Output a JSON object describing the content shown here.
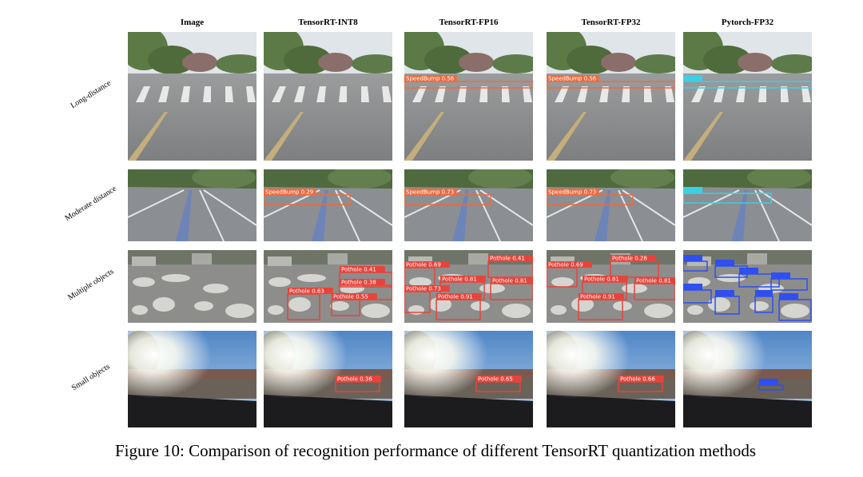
{
  "columns": [
    "Image",
    "TensorRT-INT8",
    "TensorRT-FP16",
    "TensorRT-FP32",
    "Pytorch-FP32"
  ],
  "rows": [
    {
      "label": "Long-distance",
      "detections": [
        [],
        [],
        [
          "SpeedBump 0.56"
        ],
        [
          "SpeedBump 0.56"
        ],
        []
      ]
    },
    {
      "label": "Moderate distance",
      "detections": [
        [],
        [
          "SpeedBump 0.29"
        ],
        [
          "SpeedBump 0.73"
        ],
        [
          "SpeedBump 0.73"
        ],
        []
      ]
    },
    {
      "label": "Multiple objects",
      "detections": [
        [],
        [
          "Pothole 0.41",
          "Pothole 0.38",
          "Pothole 0.63",
          "Pothole 0.55"
        ],
        [
          "Pothole 0.69",
          "Pothole 0.41",
          "Pothole 0.81",
          "Pothole 0.81",
          "Pothole 0.73",
          "Pothole 0.91"
        ],
        [
          "Pothole 0.69",
          "Pothole 0.28",
          "Pothole 0.81",
          "Pothole 0.81",
          "Pothole 0.91"
        ],
        []
      ]
    },
    {
      "label": "Small objects",
      "detections": [
        [],
        [
          "Pothole 0.36"
        ],
        [
          "Pothole 0.65"
        ],
        [
          "Pothole 0.66"
        ],
        []
      ]
    }
  ],
  "caption": "Figure 10: Comparison of recognition performance of different TensorRT quantization methods"
}
